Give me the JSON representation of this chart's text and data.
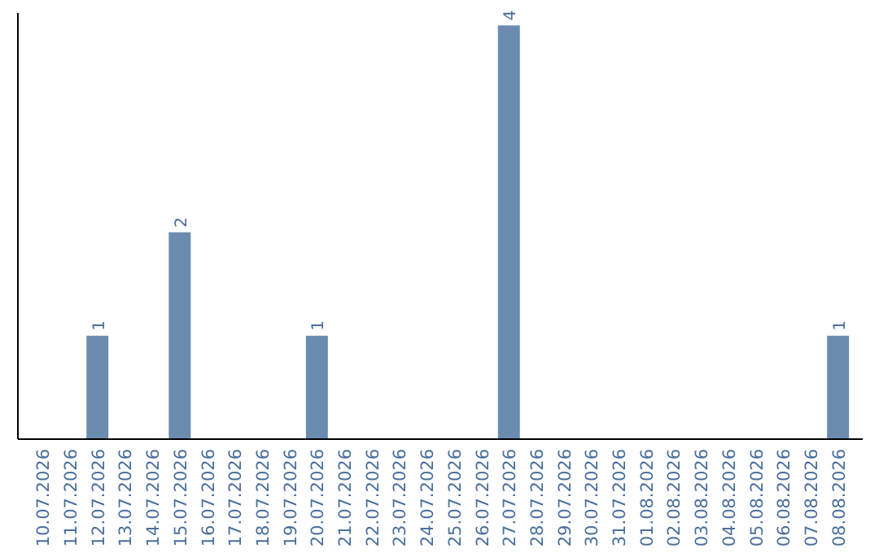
{
  "chart_data": {
    "type": "bar",
    "categories": [
      "10.07.2026",
      "11.07.2026",
      "12.07.2026",
      "13.07.2026",
      "14.07.2026",
      "15.07.2026",
      "16.07.2026",
      "17.07.2026",
      "18.07.2026",
      "19.07.2026",
      "20.07.2026",
      "21.07.2026",
      "22.07.2026",
      "23.07.2026",
      "24.07.2026",
      "25.07.2026",
      "26.07.2026",
      "27.07.2026",
      "28.07.2026",
      "29.07.2026",
      "30.07.2026",
      "31.07.2026",
      "01.08.2026",
      "02.08.2026",
      "03.08.2026",
      "04.08.2026",
      "05.08.2026",
      "06.08.2026",
      "07.08.2026",
      "08.08.2026"
    ],
    "values": [
      0,
      0,
      1,
      0,
      0,
      2,
      0,
      0,
      0,
      0,
      1,
      0,
      0,
      0,
      0,
      0,
      0,
      4,
      0,
      0,
      0,
      0,
      0,
      0,
      0,
      0,
      0,
      0,
      0,
      1
    ],
    "value_labels": [
      null,
      null,
      "1",
      null,
      null,
      "2",
      null,
      null,
      null,
      null,
      "1",
      null,
      null,
      null,
      null,
      null,
      null,
      "4",
      null,
      null,
      null,
      null,
      null,
      null,
      null,
      null,
      null,
      null,
      null,
      "1"
    ],
    "color": "#6b8cae"
  }
}
